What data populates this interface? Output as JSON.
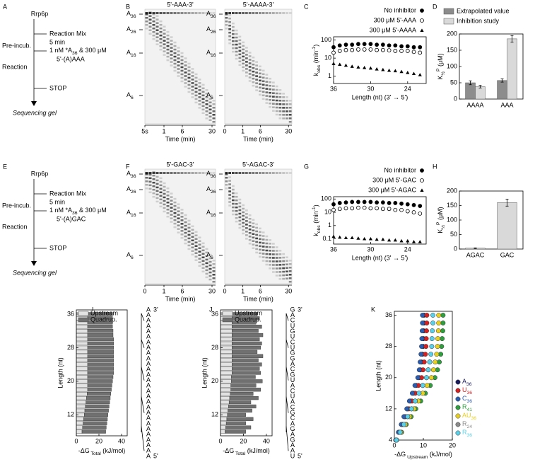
{
  "panel_letters": [
    "A",
    "B",
    "C",
    "D",
    "E",
    "F",
    "G",
    "H",
    "I",
    "J",
    "K"
  ],
  "protocols": [
    {
      "enzyme": "Rrp6p",
      "mix": "Reaction Mix",
      "time": "5 min",
      "preincubation": "Pre-incub.",
      "addition": {
        "pre": "1 nM *A",
        "sub": "36",
        "post": " & 300 μM"
      },
      "addition_2": "5'-(A)AAA",
      "reaction": "Reaction",
      "stop": "STOP",
      "readout": "Sequencing gel"
    },
    {
      "enzyme": "Rrp6p",
      "mix": "Reaction Mix",
      "time": "5 min",
      "preincubation": "Pre-incub.",
      "addition": {
        "pre": "1 nM *A",
        "sub": "36",
        "post": " & 300 μM"
      },
      "addition_2": "5'-(A)GAC",
      "reaction": "Reaction",
      "stop": "STOP",
      "readout": "Sequencing gel"
    }
  ],
  "gels": [
    {
      "lanes": [
        {
          "title": "5'-AAA-3'",
          "markers": [
            {
              "base": "A",
              "sub": "36"
            },
            {
              "base": "A",
              "sub": "26"
            },
            {
              "base": "A",
              "sub": "16"
            },
            {
              "base": "A",
              "sub": "6"
            }
          ],
          "times": [
            "5s",
            "1",
            "6",
            "30"
          ],
          "time_label": "Time (min)"
        },
        {
          "title": "5'-AAAA-3'",
          "markers": [
            {
              "base": "A",
              "sub": "36"
            },
            {
              "base": "A",
              "sub": "26"
            },
            {
              "base": "A",
              "sub": "16"
            },
            {
              "base": "A",
              "sub": "6"
            }
          ],
          "times": [
            "0",
            "1",
            "6",
            "30"
          ],
          "time_label": "Time (min)"
        }
      ]
    },
    {
      "lanes": [
        {
          "title": "5'-GAC-3'",
          "markers": [
            {
              "base": "A",
              "sub": "36"
            },
            {
              "base": "A",
              "sub": "26"
            },
            {
              "base": "A",
              "sub": "16"
            },
            {
              "base": "A",
              "sub": "6"
            }
          ],
          "times": [
            "0",
            "1",
            "6",
            "30"
          ],
          "time_label": "Time (min)"
        },
        {
          "title": "5'-AGAC-3'",
          "markers": [
            {
              "base": "A",
              "sub": "36"
            },
            {
              "base": "A",
              "sub": "26"
            },
            {
              "base": "A",
              "sub": "16"
            },
            {
              "base": "A",
              "sub": "6"
            }
          ],
          "times": [
            "0",
            "1",
            "6",
            "30"
          ],
          "time_label": "Time (min)"
        }
      ]
    }
  ],
  "chart_data": [
    {
      "type": "scatter",
      "log_y": true,
      "x": [
        36,
        35,
        34,
        33,
        32,
        31,
        30,
        29,
        28,
        27,
        26,
        25,
        24,
        23,
        22
      ],
      "xlim": [
        36,
        21
      ],
      "xticks": [
        36,
        30,
        24
      ],
      "ylim": [
        0.4,
        150
      ],
      "yticks": [
        1,
        10,
        100
      ],
      "ylabel": {
        "base": "k",
        "sub": "obs",
        "unit": " (min",
        "sup": "-1",
        "close": ")"
      },
      "xlabel": "Length (nt)  (3' → 5')",
      "series": [
        {
          "name": "No inhibitor",
          "marker": "filled-circle",
          "color": "#000000",
          "values": [
            40,
            50,
            55,
            55,
            60,
            60,
            60,
            55,
            55,
            50,
            50,
            45,
            45,
            40,
            40
          ]
        },
        {
          "name": "300 μM 5'-AAA",
          "marker": "open-circle",
          "color": "#000000",
          "values": [
            20,
            25,
            28,
            28,
            30,
            30,
            30,
            28,
            28,
            27,
            25,
            25,
            25,
            22,
            20
          ]
        },
        {
          "name": "300 μM 5'-AAAA",
          "marker": "triangle",
          "color": "#000000",
          "values": [
            5,
            4.5,
            4,
            3.5,
            3.2,
            3,
            2.8,
            2.5,
            2.3,
            2.1,
            2,
            1.8,
            1.6,
            1.4,
            1.2
          ]
        }
      ]
    },
    {
      "type": "bar",
      "categories": [
        "AAAA",
        "AAA"
      ],
      "ylim": [
        0,
        200
      ],
      "yticks": [
        0,
        50,
        100,
        150,
        200
      ],
      "ylabel": {
        "base": "K",
        "sub": "½",
        "sup": "P",
        "unit": " (μM)"
      },
      "series": [
        {
          "name": "Extrapolated value",
          "color": "#8c8c8c",
          "values": [
            50,
            57
          ],
          "errors": [
            6,
            5
          ]
        },
        {
          "name": "Inhibition study",
          "color": "#d9d9d9",
          "values": [
            38,
            185
          ],
          "errors": [
            4,
            10
          ]
        }
      ]
    },
    {
      "type": "scatter",
      "log_y": true,
      "x": [
        36,
        35,
        34,
        33,
        32,
        31,
        30,
        29,
        28,
        27,
        26,
        25,
        24,
        23,
        22
      ],
      "xlim": [
        36,
        21
      ],
      "xticks": [
        36,
        30,
        24
      ],
      "ylim": [
        0.04,
        150
      ],
      "yticks": [
        0.1,
        1,
        10,
        100
      ],
      "ylabel": {
        "base": "k",
        "sub": "obs",
        "unit": " (min",
        "sup": "-1",
        "close": ")"
      },
      "xlabel": "Length (nt)  (3' → 5')",
      "series": [
        {
          "name": "No inhibitor",
          "marker": "filled-circle",
          "color": "#000000",
          "values": [
            40,
            50,
            55,
            60,
            60,
            60,
            60,
            55,
            55,
            50,
            50,
            45,
            40,
            35,
            30
          ]
        },
        {
          "name": "300 μM 5'-GAC",
          "marker": "open-circle",
          "color": "#000000",
          "values": [
            15,
            18,
            20,
            20,
            22,
            22,
            20,
            20,
            18,
            18,
            15,
            15,
            12,
            10,
            8
          ]
        },
        {
          "name": "300 μM 5'-AGAC",
          "marker": "triangle",
          "color": "#000000",
          "values": [
            0.15,
            0.13,
            0.12,
            0.12,
            0.11,
            0.1,
            0.1,
            0.09,
            0.09,
            0.08,
            0.08,
            0.07,
            0.07,
            0.06,
            0.06
          ]
        }
      ]
    },
    {
      "type": "bar",
      "categories": [
        "AGAC",
        "GAC"
      ],
      "ylim": [
        0,
        200
      ],
      "yticks": [
        0,
        50,
        100,
        150,
        200
      ],
      "ylabel": {
        "base": "K",
        "sub": "½",
        "sup": "P",
        "unit": " (μM)"
      },
      "series": [
        {
          "color": "#d9d9d9",
          "values": [
            3,
            160
          ],
          "errors": [
            1,
            12
          ]
        }
      ]
    },
    {
      "type": "barh",
      "y": [
        8,
        9,
        10,
        11,
        12,
        13,
        14,
        15,
        16,
        17,
        18,
        19,
        20,
        21,
        22,
        23,
        24,
        25,
        26,
        27,
        28,
        29,
        30,
        31,
        32,
        33,
        34,
        35,
        36
      ],
      "ylim": [
        7,
        37
      ],
      "yticks": [
        12,
        20,
        28,
        36
      ],
      "xlim": [
        0,
        45
      ],
      "xticks": [
        0,
        20,
        40
      ],
      "ylabel": "Length (nt)",
      "xlabel": {
        "base": "-ΔG",
        "sub": " Total",
        "unit": "  (kJ/mol)"
      },
      "series": [
        {
          "name": "Upstream",
          "color": "#e3e3e3",
          "values": [
            5,
            5.5,
            6,
            6.5,
            7,
            7.5,
            8,
            8.5,
            9,
            9.5,
            10,
            10,
            10,
            10,
            10,
            10,
            10,
            10,
            10,
            10,
            10,
            10,
            10,
            10,
            10,
            10,
            10,
            10,
            10
          ]
        },
        {
          "name": "Quadrup.",
          "color": "#707070",
          "values": [
            21,
            21,
            21,
            21,
            21,
            21,
            21,
            21,
            21,
            21,
            21,
            21.5,
            22,
            22.5,
            23,
            23,
            23,
            23,
            23,
            23,
            23,
            23,
            23,
            22.5,
            22.5,
            22,
            22,
            22,
            22
          ]
        }
      ],
      "sequence": [
        "A",
        "A",
        "A",
        "A",
        "A",
        "A",
        "A",
        "A",
        "A",
        "A",
        "A",
        "A",
        "A",
        "A",
        "A",
        "A",
        "A",
        "A",
        "A",
        "A",
        "A",
        "A",
        "A",
        "A",
        "A",
        "A",
        "A",
        "A"
      ],
      "sequence_ends": [
        "3'",
        "5'"
      ]
    },
    {
      "type": "barh",
      "y": [
        8,
        9,
        10,
        11,
        12,
        13,
        14,
        15,
        16,
        17,
        18,
        19,
        20,
        21,
        22,
        23,
        24,
        25,
        26,
        27,
        28,
        29,
        30,
        31,
        32,
        33,
        34,
        35,
        36
      ],
      "ylim": [
        7,
        37
      ],
      "yticks": [
        12,
        20,
        28,
        36
      ],
      "xlim": [
        0,
        45
      ],
      "xticks": [
        0,
        20,
        40
      ],
      "ylabel": "Length (nt)",
      "xlabel": {
        "base": "-ΔG",
        "sub": " Total",
        "unit": "  (kJ/mol)"
      },
      "series": [
        {
          "name": "Upstream",
          "color": "#e3e3e3",
          "values": [
            4,
            4.5,
            5,
            5.5,
            6,
            6.5,
            7,
            7.5,
            8,
            8.5,
            9,
            9,
            9.5,
            9.5,
            10,
            10,
            10,
            10,
            10,
            10,
            10,
            10,
            10,
            10,
            10,
            10,
            10,
            10,
            10
          ]
        },
        {
          "name": "Quadrup.",
          "color": "#707070",
          "values": [
            18,
            22,
            17,
            23,
            16,
            21,
            24,
            19,
            25,
            20,
            26,
            22,
            27,
            21,
            25,
            24,
            26,
            23,
            27,
            22,
            25,
            26,
            24,
            27,
            23,
            26,
            21,
            24,
            22
          ]
        }
      ],
      "sequence": [
        "G",
        "A",
        "C",
        "U",
        "G",
        "U",
        "C",
        "U",
        "G",
        "G",
        "A",
        "C",
        "G",
        "U",
        "A",
        "C",
        "U",
        "A",
        "C",
        "G",
        "C",
        "A",
        "G",
        "A",
        "G",
        "A",
        "A",
        "U"
      ],
      "sequence_ends": [
        "3'",
        "5'"
      ]
    },
    {
      "type": "dotprofile",
      "y": [
        4,
        6,
        8,
        10,
        12,
        14,
        16,
        18,
        20,
        22,
        24,
        26,
        28,
        30,
        32,
        34,
        36
      ],
      "ylim": [
        4,
        37
      ],
      "yticks": [
        4,
        12,
        20,
        28,
        36
      ],
      "xlim": [
        0,
        20
      ],
      "xticks": [
        0,
        10,
        20
      ],
      "ylabel": "Length (nt)",
      "xlabel": {
        "base": "-ΔG",
        "sub": " Upstream",
        "unit": "  (kJ/mol)"
      },
      "series": [
        {
          "name": "A",
          "name_sub": "36",
          "color": "#1a1a5e",
          "values": [
            0.5,
            1.5,
            2.5,
            3.5,
            4.5,
            5.5,
            6.5,
            7.5,
            8.5,
            9.0,
            9.4,
            9.7,
            9.9,
            10.0,
            10.1,
            10.2,
            10.2
          ]
        },
        {
          "name": "U",
          "name_sub": "36",
          "color": "#d62020",
          "values": [
            0.6,
            1.7,
            2.8,
            3.9,
            5.0,
            6.1,
            7.2,
            8.3,
            9.4,
            9.9,
            10.3,
            10.7,
            10.9,
            11.0,
            11.1,
            11.2,
            11.2
          ]
        },
        {
          "name": "C",
          "name_sub": "36",
          "color": "#2a5db0",
          "values": [
            0.5,
            1.4,
            2.4,
            3.3,
            4.3,
            5.2,
            6.2,
            7.1,
            8.1,
            8.6,
            8.9,
            9.2,
            9.4,
            9.5,
            9.6,
            9.7,
            9.7
          ]
        },
        {
          "name": "R",
          "name_sub": "41",
          "color": "#2e9e3e",
          "values": [
            0.8,
            2.5,
            4.1,
            5.8,
            7.4,
            9.1,
            10.7,
            12.4,
            14.0,
            14.9,
            15.5,
            16.0,
            16.3,
            16.5,
            16.7,
            16.8,
            16.8
          ]
        },
        {
          "name": "AU",
          "name_sub": "36",
          "color": "#e8d020",
          "values": [
            0.8,
            2.3,
            3.8,
            5.3,
            6.8,
            8.3,
            9.8,
            11.3,
            12.8,
            13.5,
            14.1,
            14.6,
            14.9,
            15.0,
            15.2,
            15.3,
            15.3
          ]
        },
        {
          "name": "R",
          "name_sub": "24",
          "color": "#8a8a8a",
          "values": [
            0.7,
            2.0,
            3.3,
            4.6,
            5.9,
            7.2,
            8.5,
            9.8,
            11.1,
            11.7,
            12.2,
            null,
            null,
            null,
            null,
            null,
            null
          ]
        },
        {
          "name": "R",
          "name_sub": "36",
          "color": "#5ad0e8",
          "values": [
            0.7,
            2.0,
            3.3,
            4.6,
            5.9,
            7.2,
            8.5,
            9.8,
            11.1,
            11.7,
            12.2,
            12.6,
            12.9,
            13.0,
            13.1,
            13.3,
            13.3
          ]
        }
      ]
    }
  ]
}
